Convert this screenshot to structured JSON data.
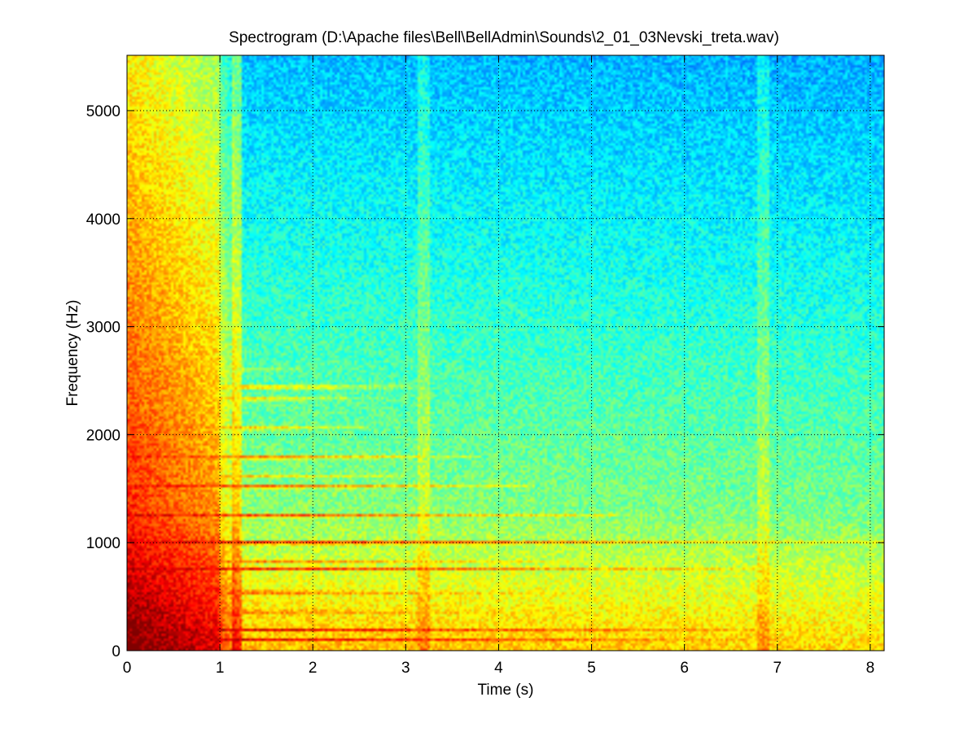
{
  "chart_data": {
    "type": "heatmap",
    "title": "Spectrogram (D:\\Apache files\\Bell\\BellAdmin\\Sounds\\2_01_03Nevski_treta.wav)",
    "xlabel": "Time (s)",
    "ylabel": "Frequency (Hz)",
    "xlim": [
      0,
      8.15
    ],
    "ylim": [
      0,
      5512
    ],
    "x_ticks": [
      "0",
      "1",
      "2",
      "3",
      "4",
      "5",
      "6",
      "7",
      "8"
    ],
    "y_ticks": [
      "0",
      "1000",
      "2000",
      "3000",
      "4000",
      "5000"
    ],
    "grid": true,
    "colormap": "jet",
    "colors": {
      "low": "#00aaff",
      "mid": "#ffff00",
      "high": "#ff0000",
      "max": "#aa0000"
    },
    "onset_band": {
      "x_start": 0,
      "x_end": 1.0,
      "intensity": "high"
    },
    "harmonic_lines_hz": [
      {
        "freq": 100,
        "end_time": 8.15,
        "strength": 0.98
      },
      {
        "freq": 190,
        "end_time": 8.15,
        "strength": 1.0
      },
      {
        "freq": 360,
        "end_time": 8.15,
        "strength": 0.85
      },
      {
        "freq": 540,
        "end_time": 7.0,
        "strength": 0.9
      },
      {
        "freq": 760,
        "end_time": 7.2,
        "strength": 0.95
      },
      {
        "freq": 830,
        "end_time": 6.0,
        "strength": 0.75
      },
      {
        "freq": 1000,
        "end_time": 8.15,
        "strength": 1.0
      },
      {
        "freq": 1250,
        "end_time": 5.3,
        "strength": 0.9
      },
      {
        "freq": 1520,
        "end_time": 4.4,
        "strength": 0.88
      },
      {
        "freq": 1620,
        "end_time": 3.2,
        "strength": 0.65
      },
      {
        "freq": 1790,
        "end_time": 3.8,
        "strength": 0.85
      },
      {
        "freq": 2060,
        "end_time": 2.6,
        "strength": 0.8
      },
      {
        "freq": 2330,
        "end_time": 2.8,
        "strength": 0.7
      },
      {
        "freq": 2440,
        "end_time": 3.2,
        "strength": 0.75
      },
      {
        "freq": 2600,
        "end_time": 2.0,
        "strength": 0.6
      }
    ]
  }
}
